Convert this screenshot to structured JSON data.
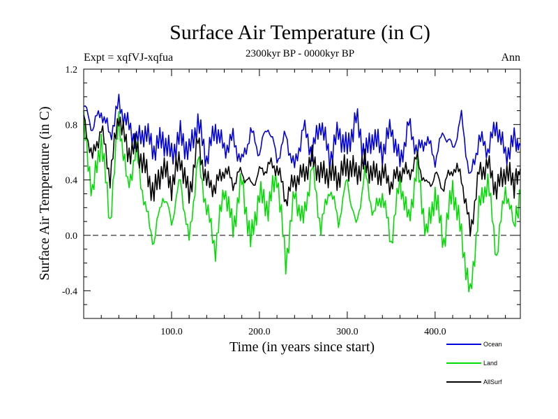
{
  "chart_data": {
    "type": "line",
    "title": "Surface Air Temperature (in C)",
    "subtitle": "2300kyr BP - 0000kyr BP",
    "expt_label": "Expt = xqfVJ-xqfua",
    "season_label": "Ann",
    "xlabel": "Time (in years since start)",
    "ylabel": "Surface Air Temperature (in C)",
    "xlim": [
      0,
      497
    ],
    "ylim": [
      -0.6,
      1.2
    ],
    "x_ticks": [
      100,
      200,
      300,
      400
    ],
    "x_tick_labels": [
      "100.0",
      "200.0",
      "300.0",
      "400.0"
    ],
    "y_ticks": [
      -0.4,
      0.0,
      0.4,
      0.8,
      1.2
    ],
    "y_tick_labels": [
      "-0.4",
      "0.0",
      "0.4",
      "0.8",
      "1.2"
    ],
    "reference_line": 0.0,
    "legend_position": "bottom-right",
    "x": [
      0,
      10,
      20,
      30,
      40,
      50,
      60,
      70,
      80,
      90,
      100,
      110,
      120,
      130,
      140,
      150,
      160,
      170,
      180,
      190,
      200,
      210,
      220,
      230,
      240,
      250,
      260,
      270,
      280,
      290,
      300,
      310,
      320,
      330,
      340,
      350,
      360,
      370,
      380,
      390,
      400,
      410,
      420,
      430,
      440,
      450,
      460,
      470,
      480,
      490,
      497
    ],
    "series": [
      {
        "name": "Ocean",
        "color": "#0000dd",
        "values": [
          0.93,
          0.78,
          0.9,
          0.72,
          0.95,
          0.8,
          0.68,
          0.75,
          0.62,
          0.7,
          0.58,
          0.72,
          0.6,
          0.82,
          0.55,
          0.78,
          0.62,
          0.7,
          0.52,
          0.75,
          0.6,
          0.8,
          0.55,
          0.72,
          0.48,
          0.78,
          0.6,
          0.82,
          0.55,
          0.75,
          0.62,
          0.85,
          0.58,
          0.72,
          0.6,
          0.78,
          0.52,
          0.8,
          0.6,
          0.7,
          0.55,
          0.75,
          0.62,
          0.85,
          0.4,
          0.7,
          0.62,
          0.8,
          0.58,
          0.68,
          0.65
        ]
      },
      {
        "name": "Land",
        "color": "#00dd00",
        "values": [
          0.8,
          0.3,
          0.7,
          0.1,
          0.85,
          0.35,
          0.6,
          0.2,
          -0.05,
          0.3,
          0.1,
          0.4,
          -0.05,
          0.55,
          0.2,
          -0.1,
          0.35,
          0.05,
          0.4,
          -0.05,
          0.3,
          0.2,
          0.45,
          -0.2,
          0.3,
          0.1,
          0.5,
          0.05,
          0.35,
          0.1,
          0.4,
          0.05,
          0.45,
          0.15,
          0.3,
          -0.05,
          0.4,
          0.1,
          0.5,
          0.0,
          0.3,
          -0.05,
          0.35,
          0.0,
          -0.45,
          0.2,
          0.4,
          -0.15,
          0.35,
          0.05,
          0.3
        ]
      },
      {
        "name": "AllSurf",
        "color": "#000000",
        "values": [
          0.85,
          0.55,
          0.78,
          0.42,
          0.88,
          0.6,
          0.64,
          0.48,
          0.3,
          0.5,
          0.36,
          0.56,
          0.28,
          0.68,
          0.38,
          0.35,
          0.48,
          0.38,
          0.46,
          0.36,
          0.45,
          0.5,
          0.5,
          0.26,
          0.4,
          0.44,
          0.55,
          0.44,
          0.45,
          0.42,
          0.51,
          0.45,
          0.52,
          0.44,
          0.45,
          0.37,
          0.46,
          0.45,
          0.55,
          0.35,
          0.43,
          0.35,
          0.49,
          0.43,
          0.02,
          0.45,
          0.51,
          0.33,
          0.47,
          0.37,
          0.48
        ]
      }
    ]
  }
}
